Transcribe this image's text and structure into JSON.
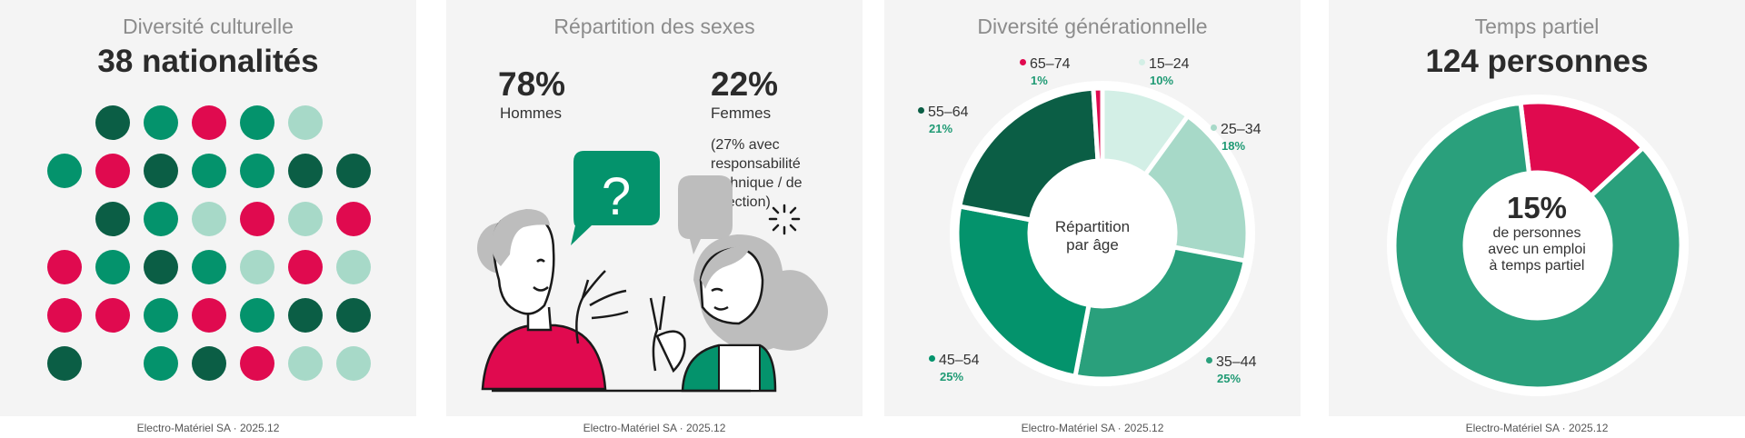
{
  "footer_text": "Electro-Matériel SA · 2025.12",
  "colors": {
    "dark_green": "#0b5e45",
    "green": "#04936c",
    "mid_green": "#2aa07c",
    "light_green": "#a7d9c8",
    "pale_green": "#d3efe6",
    "crimson": "#e00a4f",
    "grey": "#bdbdbd"
  },
  "chart_data": [
    {
      "type": "dot-matrix",
      "title": "Diversité culturelle",
      "headline": "38 nationalités",
      "dot_colors": [
        [
          "",
          "dark",
          "green",
          "crimson",
          "green",
          "light",
          ""
        ],
        [
          "green",
          "crimson",
          "dark",
          "green",
          "green",
          "dark",
          "dark"
        ],
        [
          "",
          "dark",
          "green",
          "light",
          "crimson",
          "light",
          "crimson"
        ],
        [
          "crimson",
          "green",
          "dark",
          "green",
          "light",
          "crimson",
          "light"
        ],
        [
          "crimson",
          "crimson",
          "green",
          "crimson",
          "green",
          "dark",
          "dark"
        ],
        [
          "dark",
          "",
          "green",
          "dark",
          "crimson",
          "light",
          "light"
        ]
      ]
    },
    {
      "type": "stat",
      "title": "Répartition des sexes",
      "series": [
        {
          "name": "Hommes",
          "value": 78,
          "label": "78%"
        },
        {
          "name": "Femmes",
          "value": 22,
          "label": "22%"
        }
      ],
      "note": "(27% avec responsabilité technique / de direction)",
      "illustration": "two-people-talking-question-bubble"
    },
    {
      "type": "pie",
      "title": "Diversité générationnelle",
      "center_label": [
        "Répartition",
        "par âge"
      ],
      "categories": [
        "15–24",
        "25–34",
        "35–44",
        "45–54",
        "55–64",
        "65–74"
      ],
      "values": [
        10,
        18,
        25,
        25,
        21,
        1
      ],
      "labels": [
        "10%",
        "18%",
        "25%",
        "25%",
        "21%",
        "1%"
      ],
      "slice_colors": [
        "#d3efe6",
        "#a7d9c8",
        "#2aa07c",
        "#04936c",
        "#0b5e45",
        "#e00a4f"
      ]
    },
    {
      "type": "pie",
      "title": "Temps partiel",
      "headline": "124 personnes",
      "values": [
        15,
        85
      ],
      "slice_colors": [
        "#e00a4f",
        "#2aa07c"
      ],
      "center_value": "15%",
      "center_label": [
        "de personnes",
        "avec un emploi",
        "à temps partiel"
      ]
    }
  ]
}
